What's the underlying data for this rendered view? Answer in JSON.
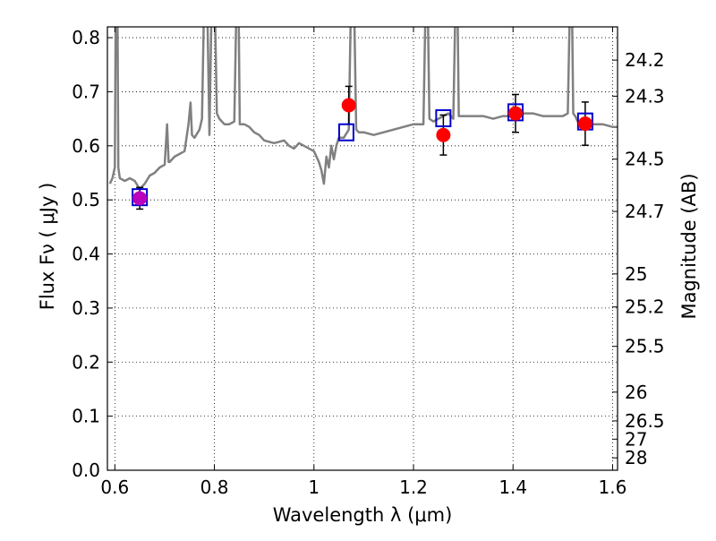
{
  "chart_data": {
    "type": "scatter",
    "title": "",
    "xlabel": "Wavelength  λ (μm)",
    "ylabel": "Flux  Fν  ( μJy )",
    "y2label": "Magnitude (AB)",
    "xlim": [
      0.585,
      1.61
    ],
    "ylim": [
      0.0,
      0.82
    ],
    "grid": true,
    "x_ticks": [
      0.6,
      0.8,
      1.0,
      1.2,
      1.4,
      1.6
    ],
    "x_tick_labels": [
      "0.6",
      "0.8",
      "1",
      "1.2",
      "1.4",
      "1.6"
    ],
    "y_ticks": [
      0.0,
      0.1,
      0.2,
      0.3,
      0.4,
      0.5,
      0.6,
      0.7,
      0.8
    ],
    "y_tick_labels": [
      "0.0",
      "0.1",
      "0.2",
      "0.3",
      "0.4",
      "0.5",
      "0.6",
      "0.7",
      "0.8"
    ],
    "y2_ticks": [
      {
        "label": "24.2",
        "flux": 0.7585
      },
      {
        "label": "24.3",
        "flux": 0.6918
      },
      {
        "label": "24.5",
        "flux": 0.5754
      },
      {
        "label": "24.7",
        "flux": 0.4786
      },
      {
        "label": "25",
        "flux": 0.3631
      },
      {
        "label": "25.2",
        "flux": 0.302
      },
      {
        "label": "25.5",
        "flux": 0.2291
      },
      {
        "label": "26",
        "flux": 0.1445
      },
      {
        "label": "26.5",
        "flux": 0.0912
      },
      {
        "label": "27",
        "flux": 0.0575
      },
      {
        "label": "28",
        "flux": 0.0229
      }
    ],
    "colors": {
      "spectrum": "#808080",
      "observed": "#ff0000",
      "model": "#0000cc",
      "magenta": "#bb00bb",
      "errorbar": "#000000"
    },
    "series": [
      {
        "marker": "line",
        "x": [
          0.59,
          0.595,
          0.6,
          0.602,
          0.605,
          0.607,
          0.61,
          0.62,
          0.63,
          0.64,
          0.65,
          0.66,
          0.67,
          0.68,
          0.69,
          0.7,
          0.705,
          0.708,
          0.71,
          0.72,
          0.73,
          0.74,
          0.748,
          0.752,
          0.755,
          0.76,
          0.77,
          0.775,
          0.78,
          0.785,
          0.79,
          0.795,
          0.8,
          0.805,
          0.81,
          0.815,
          0.82,
          0.83,
          0.84,
          0.845,
          0.848,
          0.851,
          0.855,
          0.86,
          0.87,
          0.88,
          0.89,
          0.9,
          0.92,
          0.94,
          0.95,
          0.96,
          0.97,
          0.98,
          0.99,
          1.0,
          1.005,
          1.01,
          1.015,
          1.02,
          1.025,
          1.03,
          1.035,
          1.04,
          1.045,
          1.05,
          1.06,
          1.07,
          1.075,
          1.08,
          1.085,
          1.09,
          1.1,
          1.12,
          1.14,
          1.16,
          1.18,
          1.2,
          1.22,
          1.225,
          1.228,
          1.232,
          1.24,
          1.25,
          1.26,
          1.27,
          1.28,
          1.285,
          1.288,
          1.291,
          1.3,
          1.32,
          1.34,
          1.36,
          1.38,
          1.4,
          1.42,
          1.44,
          1.46,
          1.48,
          1.5,
          1.51,
          1.515,
          1.518,
          1.521,
          1.525,
          1.53,
          1.54,
          1.55,
          1.56,
          1.58,
          1.6,
          1.61
        ],
        "y": [
          0.53,
          0.54,
          0.56,
          0.9,
          0.9,
          0.56,
          0.54,
          0.535,
          0.54,
          0.535,
          0.52,
          0.53,
          0.545,
          0.55,
          0.56,
          0.565,
          0.64,
          0.57,
          0.57,
          0.58,
          0.585,
          0.59,
          0.64,
          0.68,
          0.62,
          0.615,
          0.63,
          0.65,
          0.9,
          0.9,
          0.62,
          0.9,
          0.9,
          0.66,
          0.65,
          0.645,
          0.64,
          0.64,
          0.645,
          0.9,
          0.9,
          0.64,
          0.64,
          0.64,
          0.635,
          0.625,
          0.62,
          0.61,
          0.605,
          0.61,
          0.6,
          0.595,
          0.605,
          0.6,
          0.595,
          0.59,
          0.58,
          0.57,
          0.555,
          0.53,
          0.58,
          0.56,
          0.6,
          0.575,
          0.6,
          0.615,
          0.615,
          0.63,
          0.9,
          0.9,
          0.63,
          0.625,
          0.625,
          0.62,
          0.625,
          0.63,
          0.635,
          0.64,
          0.64,
          0.9,
          0.9,
          0.65,
          0.645,
          0.65,
          0.655,
          0.66,
          0.65,
          0.9,
          0.9,
          0.655,
          0.655,
          0.655,
          0.655,
          0.65,
          0.655,
          0.655,
          0.66,
          0.66,
          0.655,
          0.655,
          0.655,
          0.66,
          0.9,
          0.9,
          0.66,
          0.655,
          0.645,
          0.645,
          0.64,
          0.64,
          0.64,
          0.635,
          0.635
        ]
      },
      {
        "marker": "circle",
        "x": [
          0.65,
          1.07,
          1.26,
          1.405,
          1.545
        ],
        "y": [
          0.503,
          0.675,
          0.62,
          0.66,
          0.641
        ],
        "yerr": [
          0.02,
          0.035,
          0.037,
          0.035,
          0.04
        ]
      },
      {
        "marker": "open-square",
        "x": [
          0.65,
          1.065,
          1.26,
          1.405,
          1.545
        ],
        "y": [
          0.505,
          0.625,
          0.651,
          0.662,
          0.645
        ]
      }
    ]
  }
}
